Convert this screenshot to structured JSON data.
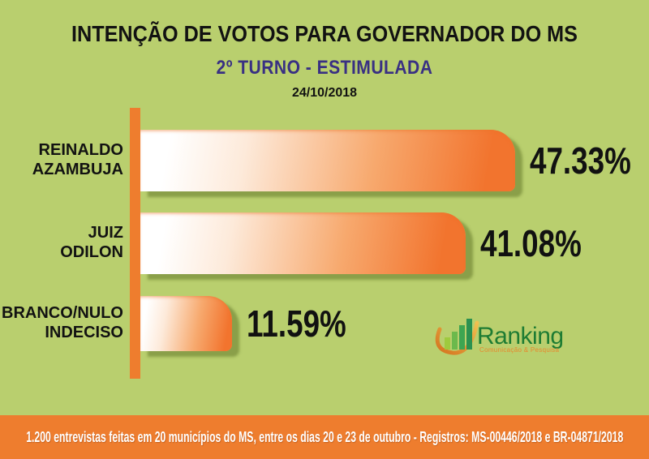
{
  "colors": {
    "background": "#b9cf6e",
    "accent_orange": "#ee7d2e",
    "bar_gradient_start": "#ffffff",
    "bar_gradient_end": "#f2742e",
    "subtitle_purple": "#393083",
    "text_black": "#121212",
    "footer_text": "#ffffff",
    "logo_green": "#1e7c33",
    "logo_tagline_orange": "#e8872d"
  },
  "chart_data": {
    "type": "bar",
    "orientation": "horizontal",
    "title": "INTENÇÃO DE VOTOS PARA GOVERNADOR DO MS",
    "subtitle": "2º TURNO - ESTIMULADA",
    "date": "24/10/2018",
    "categories": [
      "REINALDO AZAMBUJA",
      "JUIZ ODILON",
      "BRANCO/NULO INDECISO"
    ],
    "values": [
      47.33,
      41.08,
      11.59
    ],
    "value_labels": [
      "47.33%",
      "41.08%",
      "11.59%"
    ],
    "xlim": [
      0,
      50
    ],
    "grid": false,
    "legend": false,
    "rows": [
      {
        "label_line1": "REINALDO",
        "label_line2": "AZAMBUJA",
        "value": 47.33,
        "value_label": "47.33%"
      },
      {
        "label_line1": "JUIZ",
        "label_line2": "ODILON",
        "value": 41.08,
        "value_label": "41.08%"
      },
      {
        "label_line1": "BRANCO/NULO",
        "label_line2": "INDECISO",
        "value": 11.59,
        "value_label": "11.59%"
      }
    ]
  },
  "logo": {
    "name": "Ranking",
    "tagline": "Comunicação & Pesquisa"
  },
  "footer": {
    "text": "1.200 entrevistas feitas em 20 municípios do MS, entre os dias 20 e 23 de outubro - Registros: MS-00446/2018 e BR-04871/2018"
  }
}
